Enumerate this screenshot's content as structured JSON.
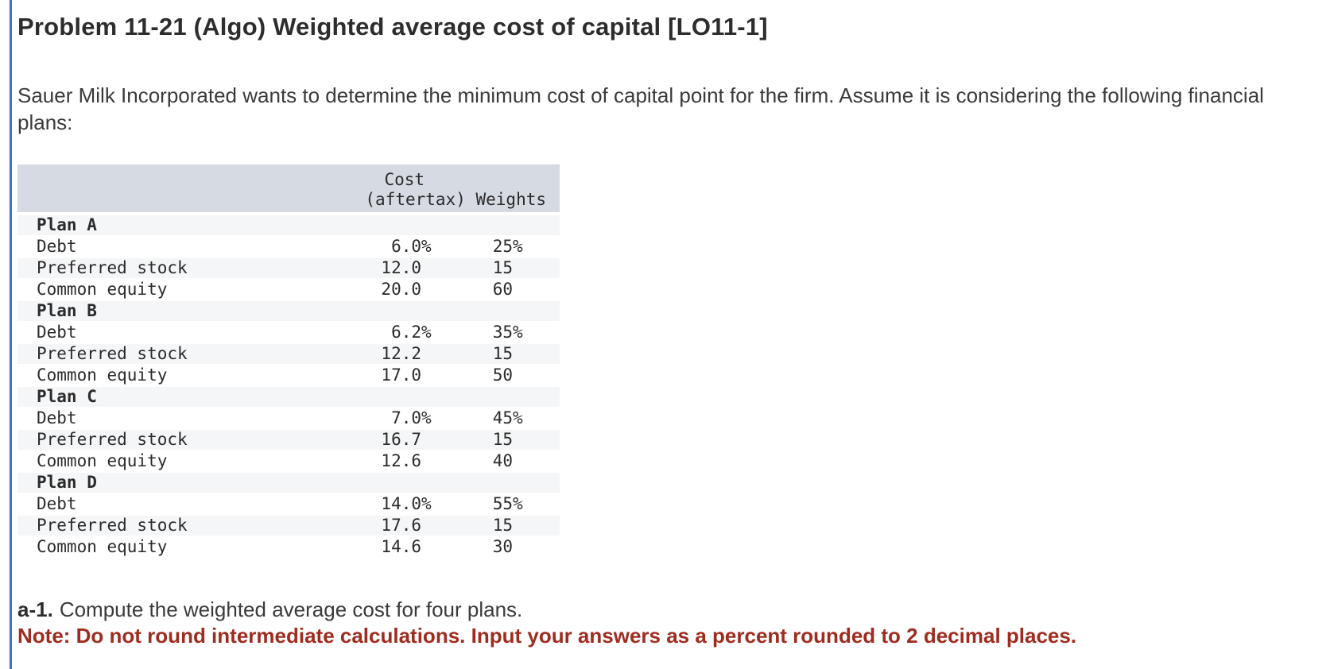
{
  "colors": {
    "accent_bar": "#3e6fd1",
    "table_header_bg": "#d6dae2",
    "table_stripe_bg": "#f5f6f7",
    "note_text": "#a02c20",
    "body_text": "#3a3a3a"
  },
  "problem": {
    "title": "Problem 11-21 (Algo) Weighted average cost of capital [LO11-1]",
    "statement": "Sauer Milk Incorporated wants to determine the minimum cost of capital point for the firm. Assume it is considering the following financial plans:"
  },
  "table": {
    "header": {
      "cost_line1": "Cost",
      "cost_line2": "(aftertax)",
      "weights": "Weights"
    },
    "rows": [
      {
        "label": "Plan A",
        "cost": "",
        "cost_suffix": "",
        "weight": "",
        "weight_suffix": ""
      },
      {
        "label": "Debt",
        "cost": "6.0",
        "cost_suffix": "%",
        "weight": "25",
        "weight_suffix": "%"
      },
      {
        "label": "Preferred stock",
        "cost": "12.0",
        "cost_suffix": "",
        "weight": "15",
        "weight_suffix": ""
      },
      {
        "label": "Common equity",
        "cost": "20.0",
        "cost_suffix": "",
        "weight": "60",
        "weight_suffix": ""
      },
      {
        "label": "Plan B",
        "cost": "",
        "cost_suffix": "",
        "weight": "",
        "weight_suffix": ""
      },
      {
        "label": "Debt",
        "cost": "6.2",
        "cost_suffix": "%",
        "weight": "35",
        "weight_suffix": "%"
      },
      {
        "label": "Preferred stock",
        "cost": "12.2",
        "cost_suffix": "",
        "weight": "15",
        "weight_suffix": ""
      },
      {
        "label": "Common equity",
        "cost": "17.0",
        "cost_suffix": "",
        "weight": "50",
        "weight_suffix": ""
      },
      {
        "label": "Plan C",
        "cost": "",
        "cost_suffix": "",
        "weight": "",
        "weight_suffix": ""
      },
      {
        "label": "Debt",
        "cost": "7.0",
        "cost_suffix": "%",
        "weight": "45",
        "weight_suffix": "%"
      },
      {
        "label": "Preferred stock",
        "cost": "16.7",
        "cost_suffix": "",
        "weight": "15",
        "weight_suffix": ""
      },
      {
        "label": "Common equity",
        "cost": "12.6",
        "cost_suffix": "",
        "weight": "40",
        "weight_suffix": ""
      },
      {
        "label": "Plan D",
        "cost": "",
        "cost_suffix": "",
        "weight": "",
        "weight_suffix": ""
      },
      {
        "label": "Debt",
        "cost": "14.0",
        "cost_suffix": "%",
        "weight": "55",
        "weight_suffix": "%"
      },
      {
        "label": "Preferred stock",
        "cost": "17.6",
        "cost_suffix": "",
        "weight": "15",
        "weight_suffix": ""
      },
      {
        "label": "Common equity",
        "cost": "14.6",
        "cost_suffix": "",
        "weight": "30",
        "weight_suffix": ""
      }
    ]
  },
  "question": {
    "prefix": "a-1.",
    "text": "Compute the weighted average cost for four plans."
  },
  "note": "Note: Do not round intermediate calculations. Input your answers as a percent rounded to 2 decimal places."
}
